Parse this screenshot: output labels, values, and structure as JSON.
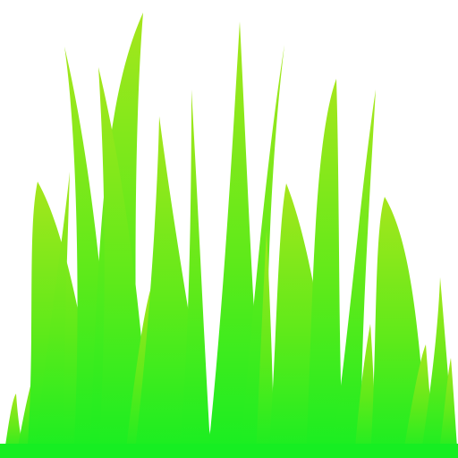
{
  "artwork": {
    "subject": "grass-blades-icon",
    "colors": {
      "tip": "#a6e61c",
      "mid": "#5eea1a",
      "base": "#16ee22",
      "background": "#ffffff"
    }
  }
}
